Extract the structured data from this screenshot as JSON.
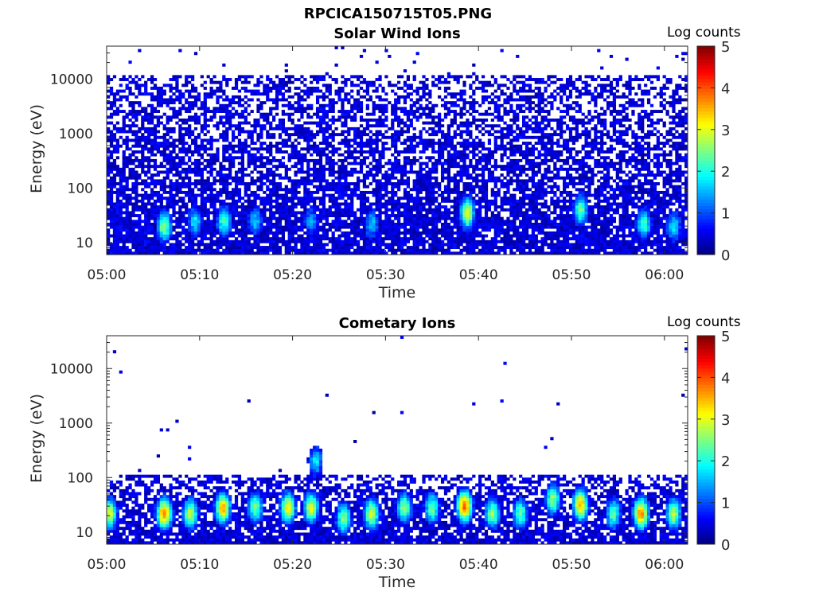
{
  "figure_title": "RPCICA150715T05.PNG",
  "colors": {
    "axis": "#262626",
    "background": "#ffffff",
    "colormap": "jet",
    "empty_bin": "#ffffff"
  },
  "chart_data": [
    {
      "type": "heatmap",
      "title": "Solar Wind Ions",
      "xlabel": "Time",
      "ylabel": "Energy (eV)",
      "x_ticks": [
        "05:00",
        "05:10",
        "05:20",
        "05:30",
        "05:40",
        "05:50",
        "06:00"
      ],
      "x_range_minutes": [
        0,
        62.5
      ],
      "y_scale": "log",
      "y_range_eV": [
        6,
        40000
      ],
      "y_ticks": [
        10,
        100,
        1000,
        10000
      ],
      "y_tick_labels": [
        "10",
        "100",
        "1000",
        "10000"
      ],
      "colorbar": {
        "label": "Log counts",
        "range": [
          0,
          5
        ],
        "ticks": [
          "0",
          "1",
          "2",
          "3",
          "4",
          "5"
        ]
      },
      "dense_up_to_eV": 12000,
      "features": [
        {
          "time_min": 6.2,
          "energy_eV": 20,
          "log_counts": 2.6
        },
        {
          "time_min": 9.5,
          "energy_eV": 25,
          "log_counts": 1.8
        },
        {
          "time_min": 12.6,
          "energy_eV": 25,
          "log_counts": 2.2
        },
        {
          "time_min": 16.0,
          "energy_eV": 25,
          "log_counts": 1.6
        },
        {
          "time_min": 22.0,
          "energy_eV": 25,
          "log_counts": 1.4
        },
        {
          "time_min": 28.5,
          "energy_eV": 22,
          "log_counts": 1.6
        },
        {
          "time_min": 38.8,
          "energy_eV": 35,
          "log_counts": 3.0
        },
        {
          "time_min": 51.0,
          "energy_eV": 40,
          "log_counts": 2.4
        },
        {
          "time_min": 57.8,
          "energy_eV": 22,
          "log_counts": 2.2
        },
        {
          "time_min": 61.0,
          "energy_eV": 20,
          "log_counts": 1.8
        }
      ]
    },
    {
      "type": "heatmap",
      "title": "Cometary Ions",
      "xlabel": "Time",
      "ylabel": "Energy (eV)",
      "x_ticks": [
        "05:00",
        "05:10",
        "05:20",
        "05:30",
        "05:40",
        "05:50",
        "06:00"
      ],
      "x_range_minutes": [
        0,
        62.5
      ],
      "y_scale": "log",
      "y_range_eV": [
        6,
        40000
      ],
      "y_ticks": [
        10,
        100,
        1000,
        10000
      ],
      "y_tick_labels": [
        "10",
        "100",
        "1000",
        "10000"
      ],
      "colorbar": {
        "label": "Log counts",
        "range": [
          0,
          5
        ],
        "ticks": [
          "0",
          "1",
          "2",
          "3",
          "4",
          "5"
        ]
      },
      "dense_up_to_eV": 120,
      "features": [
        {
          "time_min": 0.3,
          "energy_eV": 22,
          "log_counts": 3.0
        },
        {
          "time_min": 6.2,
          "energy_eV": 22,
          "log_counts": 3.8
        },
        {
          "time_min": 9.0,
          "energy_eV": 22,
          "log_counts": 2.8
        },
        {
          "time_min": 12.5,
          "energy_eV": 28,
          "log_counts": 3.5
        },
        {
          "time_min": 16.0,
          "energy_eV": 28,
          "log_counts": 2.5
        },
        {
          "time_min": 19.5,
          "energy_eV": 28,
          "log_counts": 3.2
        },
        {
          "time_min": 22.0,
          "energy_eV": 28,
          "log_counts": 3.0
        },
        {
          "time_min": 22.5,
          "energy_eV": 200,
          "log_counts": 1.8
        },
        {
          "time_min": 25.5,
          "energy_eV": 18,
          "log_counts": 2.6
        },
        {
          "time_min": 28.5,
          "energy_eV": 22,
          "log_counts": 3.0
        },
        {
          "time_min": 32.0,
          "energy_eV": 28,
          "log_counts": 2.6
        },
        {
          "time_min": 35.0,
          "energy_eV": 28,
          "log_counts": 2.4
        },
        {
          "time_min": 38.5,
          "energy_eV": 30,
          "log_counts": 4.0
        },
        {
          "time_min": 41.5,
          "energy_eV": 22,
          "log_counts": 2.6
        },
        {
          "time_min": 44.5,
          "energy_eV": 22,
          "log_counts": 2.4
        },
        {
          "time_min": 48.0,
          "energy_eV": 40,
          "log_counts": 2.6
        },
        {
          "time_min": 51.0,
          "energy_eV": 32,
          "log_counts": 3.6
        },
        {
          "time_min": 54.5,
          "energy_eV": 22,
          "log_counts": 2.4
        },
        {
          "time_min": 57.5,
          "energy_eV": 22,
          "log_counts": 3.8
        },
        {
          "time_min": 61.0,
          "energy_eV": 22,
          "log_counts": 2.8
        }
      ]
    }
  ]
}
